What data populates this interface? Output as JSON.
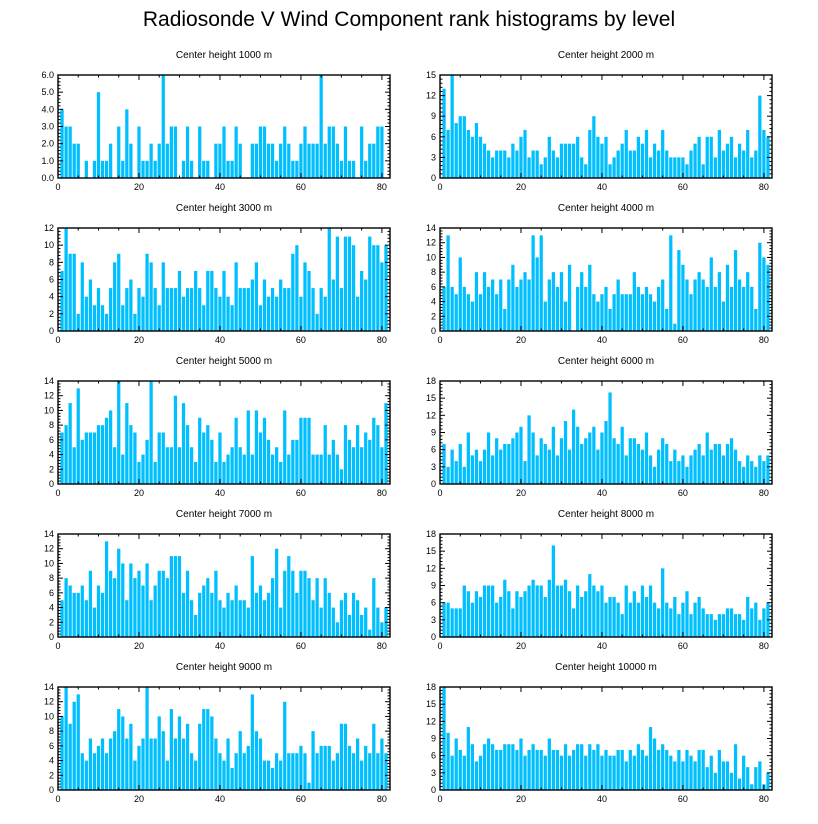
{
  "title": "Radiosonde V Wind Component rank histograms by level",
  "colors": {
    "bar": "#00bfff",
    "axis": "#000000",
    "background": "#ffffff"
  },
  "chart_data": [
    {
      "type": "bar",
      "title": "Center height 1000 m",
      "xlim": [
        0,
        82
      ],
      "ylim": [
        0,
        6
      ],
      "xticks": [
        0,
        20,
        40,
        60,
        80
      ],
      "yticks": [
        0,
        1,
        2,
        3,
        4,
        5,
        6
      ],
      "ytick_labels": [
        "0.0",
        "1.0",
        "2.0",
        "3.0",
        "4.0",
        "5.0",
        "6.0"
      ],
      "values": [
        4,
        3,
        3,
        2,
        2,
        0,
        1,
        0,
        1,
        5,
        1,
        1,
        2,
        0,
        3,
        1,
        4,
        2,
        0,
        3,
        1,
        1,
        2,
        1,
        2,
        6,
        2,
        3,
        3,
        0,
        1,
        3,
        1,
        0,
        3,
        1,
        1,
        0,
        2,
        2,
        3,
        1,
        1,
        3,
        2,
        0,
        0,
        2,
        2,
        3,
        3,
        2,
        2,
        1,
        2,
        3,
        2,
        1,
        1,
        2,
        3,
        2,
        2,
        2,
        6,
        2,
        3,
        3,
        2,
        1,
        3,
        1,
        1,
        0,
        3,
        1,
        2,
        2,
        3,
        3
      ]
    },
    {
      "type": "bar",
      "title": "Center height 2000 m",
      "xlim": [
        0,
        82
      ],
      "ylim": [
        0,
        15
      ],
      "xticks": [
        0,
        20,
        40,
        60,
        80
      ],
      "yticks": [
        0,
        3,
        6,
        9,
        12,
        15
      ],
      "ytick_labels": [
        "0",
        "3",
        "6",
        "9",
        "12",
        "15"
      ],
      "values": [
        13,
        7,
        15,
        8,
        9,
        9,
        7,
        6,
        8,
        6,
        5,
        4,
        3,
        4,
        4,
        4,
        3,
        5,
        4,
        6,
        7,
        3,
        4,
        4,
        2,
        3,
        6,
        4,
        3,
        5,
        5,
        5,
        5,
        6,
        3,
        2,
        7,
        9,
        6,
        5,
        6,
        2,
        3,
        4,
        5,
        7,
        4,
        4,
        6,
        5,
        7,
        3,
        5,
        4,
        7,
        4,
        3,
        3,
        3,
        3,
        2,
        4,
        5,
        6,
        2,
        6,
        6,
        3,
        7,
        4,
        5,
        6,
        3,
        5,
        4,
        7,
        3,
        4,
        12,
        7,
        6
      ]
    },
    {
      "type": "bar",
      "title": "Center height 3000 m",
      "xlim": [
        0,
        82
      ],
      "ylim": [
        0,
        12
      ],
      "xticks": [
        0,
        20,
        40,
        60,
        80
      ],
      "yticks": [
        0,
        2,
        4,
        6,
        8,
        10,
        12
      ],
      "ytick_labels": [
        "0",
        "2",
        "4",
        "6",
        "8",
        "10",
        "12"
      ],
      "values": [
        7,
        12,
        9,
        9,
        2,
        8,
        4,
        6,
        3,
        5,
        3,
        2,
        5,
        8,
        9,
        3,
        5,
        6,
        2,
        5,
        4,
        9,
        8,
        5,
        3,
        8,
        5,
        5,
        5,
        7,
        4,
        5,
        5,
        7,
        5,
        3,
        7,
        7,
        5,
        4,
        7,
        4,
        3,
        8,
        5,
        5,
        5,
        6,
        8,
        3,
        6,
        4,
        5,
        4,
        6,
        5,
        5,
        9,
        10,
        4,
        8,
        7,
        5,
        2,
        5,
        4,
        12,
        6,
        11,
        5,
        11,
        11,
        10,
        4,
        7,
        6,
        11,
        10,
        10,
        8,
        10
      ]
    },
    {
      "type": "bar",
      "title": "Center height 4000 m",
      "xlim": [
        0,
        82
      ],
      "ylim": [
        0,
        14
      ],
      "xticks": [
        0,
        20,
        40,
        60,
        80
      ],
      "yticks": [
        0,
        2,
        4,
        6,
        8,
        10,
        12,
        14
      ],
      "ytick_labels": [
        "0",
        "2",
        "4",
        "6",
        "8",
        "10",
        "12",
        "14"
      ],
      "values": [
        6,
        13,
        6,
        5,
        10,
        6,
        5,
        4,
        8,
        5,
        8,
        6,
        7,
        5,
        7,
        3,
        7,
        9,
        6,
        7,
        8,
        7,
        13,
        10,
        13,
        4,
        7,
        8,
        6,
        8,
        4,
        9,
        0,
        6,
        8,
        6,
        9,
        5,
        4,
        5,
        6,
        3,
        5,
        7,
        5,
        5,
        5,
        8,
        6,
        5,
        6,
        5,
        4,
        6,
        7,
        3,
        13,
        1,
        11,
        9,
        7,
        5,
        7,
        8,
        7,
        6,
        10,
        6,
        8,
        4,
        9,
        6,
        11,
        7,
        6,
        8,
        6,
        3,
        12,
        10,
        9
      ]
    },
    {
      "type": "bar",
      "title": "Center height 5000 m",
      "xlim": [
        0,
        82
      ],
      "ylim": [
        0,
        14
      ],
      "xticks": [
        0,
        20,
        40,
        60,
        80
      ],
      "yticks": [
        0,
        2,
        4,
        6,
        8,
        10,
        12,
        14
      ],
      "ytick_labels": [
        "0",
        "2",
        "4",
        "6",
        "8",
        "10",
        "12",
        "14"
      ],
      "values": [
        7,
        8,
        11,
        5,
        13,
        6,
        7,
        7,
        7,
        8,
        8,
        9,
        10,
        5,
        14,
        4,
        11,
        8,
        7,
        3,
        4,
        6,
        14,
        3,
        7,
        7,
        5,
        5,
        12,
        5,
        11,
        8,
        5,
        3,
        9,
        7,
        8,
        6,
        3,
        7,
        3,
        4,
        5,
        9,
        5,
        4,
        10,
        4,
        10,
        7,
        9,
        6,
        4,
        5,
        3,
        10,
        4,
        6,
        6,
        9,
        9,
        9,
        4,
        4,
        4,
        8,
        4,
        6,
        4,
        2,
        8,
        6,
        5,
        8,
        5,
        7,
        6,
        9,
        8,
        5,
        11
      ]
    },
    {
      "type": "bar",
      "title": "Center height 6000 m",
      "xlim": [
        0,
        82
      ],
      "ylim": [
        0,
        18
      ],
      "xticks": [
        0,
        20,
        40,
        60,
        80
      ],
      "yticks": [
        0,
        3,
        6,
        9,
        12,
        15,
        18
      ],
      "ytick_labels": [
        "0",
        "3",
        "6",
        "9",
        "12",
        "15",
        "18"
      ],
      "values": [
        7,
        3,
        6,
        4,
        7,
        3,
        9,
        5,
        6,
        4,
        6,
        9,
        5,
        8,
        6,
        7,
        7,
        8,
        9,
        10,
        4,
        12,
        9,
        5,
        8,
        7,
        6,
        10,
        5,
        8,
        11,
        6,
        13,
        10,
        7,
        8,
        9,
        10,
        6,
        9,
        11,
        16,
        8,
        7,
        10,
        5,
        8,
        8,
        7,
        6,
        9,
        5,
        3,
        6,
        8,
        7,
        4,
        6,
        4,
        5,
        3,
        5,
        6,
        7,
        5,
        9,
        6,
        7,
        7,
        5,
        7,
        8,
        6,
        4,
        3,
        5,
        4,
        3,
        5,
        4,
        5
      ]
    },
    {
      "type": "bar",
      "title": "Center height 7000 m",
      "xlim": [
        0,
        82
      ],
      "ylim": [
        0,
        14
      ],
      "xticks": [
        0,
        20,
        40,
        60,
        80
      ],
      "yticks": [
        0,
        2,
        4,
        6,
        8,
        10,
        12,
        14
      ],
      "ytick_labels": [
        "0",
        "2",
        "4",
        "6",
        "8",
        "10",
        "12",
        "14"
      ],
      "values": [
        5,
        8,
        7,
        6,
        6,
        7,
        5,
        9,
        4,
        7,
        6,
        13,
        9,
        8,
        12,
        10,
        5,
        10,
        8,
        9,
        7,
        10,
        5,
        7,
        9,
        9,
        8,
        11,
        11,
        11,
        6,
        9,
        5,
        3,
        6,
        7,
        8,
        6,
        9,
        5,
        4,
        6,
        5,
        7,
        5,
        5,
        4,
        11,
        6,
        7,
        5,
        6,
        8,
        12,
        4,
        9,
        11,
        9,
        6,
        9,
        9,
        8,
        5,
        8,
        4,
        8,
        6,
        4,
        2,
        5,
        6,
        3,
        6,
        5,
        3,
        4,
        1,
        8,
        4,
        2,
        4
      ]
    },
    {
      "type": "bar",
      "title": "Center height 8000 m",
      "xlim": [
        0,
        82
      ],
      "ylim": [
        0,
        18
      ],
      "xticks": [
        0,
        20,
        40,
        60,
        80
      ],
      "yticks": [
        0,
        3,
        6,
        9,
        12,
        15,
        18
      ],
      "ytick_labels": [
        "0",
        "3",
        "6",
        "9",
        "12",
        "15",
        "18"
      ],
      "values": [
        6,
        6,
        5,
        5,
        5,
        9,
        8,
        6,
        8,
        7,
        9,
        9,
        9,
        6,
        7,
        10,
        8,
        5,
        8,
        7,
        8,
        9,
        10,
        9,
        9,
        7,
        10,
        16,
        9,
        9,
        10,
        8,
        5,
        9,
        7,
        8,
        11,
        9,
        8,
        9,
        6,
        7,
        7,
        6,
        4,
        9,
        6,
        8,
        6,
        9,
        7,
        9,
        6,
        5,
        12,
        6,
        5,
        7,
        4,
        6,
        8,
        4,
        6,
        7,
        5,
        4,
        4,
        3,
        4,
        4,
        5,
        5,
        4,
        4,
        3,
        7,
        5,
        6,
        3,
        5,
        6
      ]
    },
    {
      "type": "bar",
      "title": "Center height 9000 m",
      "xlim": [
        0,
        82
      ],
      "ylim": [
        0,
        14
      ],
      "xticks": [
        0,
        20,
        40,
        60,
        80
      ],
      "yticks": [
        0,
        2,
        4,
        6,
        8,
        10,
        12,
        14
      ],
      "ytick_labels": [
        "0",
        "2",
        "4",
        "6",
        "8",
        "10",
        "12",
        "14"
      ],
      "values": [
        10,
        14,
        9,
        12,
        13,
        5,
        4,
        7,
        5,
        6,
        7,
        5,
        7,
        8,
        11,
        10,
        7,
        9,
        4,
        6,
        7,
        14,
        7,
        7,
        10,
        8,
        4,
        11,
        7,
        10,
        7,
        9,
        5,
        4,
        9,
        11,
        11,
        10,
        7,
        5,
        4,
        7,
        3,
        5,
        8,
        5,
        6,
        13,
        8,
        7,
        4,
        4,
        3,
        5,
        4,
        12,
        5,
        5,
        5,
        6,
        5,
        1,
        8,
        5,
        6,
        6,
        6,
        4,
        5,
        9,
        9,
        6,
        5,
        7,
        4,
        6,
        5,
        9,
        5,
        7,
        5
      ]
    },
    {
      "type": "bar",
      "title": "Center height 10000 m",
      "xlim": [
        0,
        82
      ],
      "ylim": [
        0,
        18
      ],
      "xticks": [
        0,
        20,
        40,
        60,
        80
      ],
      "yticks": [
        0,
        3,
        6,
        9,
        12,
        15,
        18
      ],
      "ytick_labels": [
        "0",
        "3",
        "6",
        "9",
        "12",
        "15",
        "18"
      ],
      "values": [
        18,
        10,
        6,
        9,
        7,
        6,
        11,
        8,
        5,
        6,
        8,
        9,
        8,
        7,
        7,
        8,
        8,
        8,
        7,
        9,
        6,
        7,
        8,
        7,
        7,
        6,
        9,
        7,
        7,
        6,
        8,
        6,
        7,
        8,
        8,
        6,
        8,
        7,
        8,
        6,
        7,
        6,
        6,
        7,
        7,
        5,
        7,
        6,
        8,
        7,
        6,
        11,
        9,
        7,
        8,
        7,
        6,
        5,
        7,
        5,
        7,
        6,
        5,
        7,
        7,
        4,
        6,
        3,
        7,
        5,
        5,
        3,
        8,
        2,
        6,
        4,
        1,
        4,
        5,
        1,
        3
      ]
    }
  ]
}
